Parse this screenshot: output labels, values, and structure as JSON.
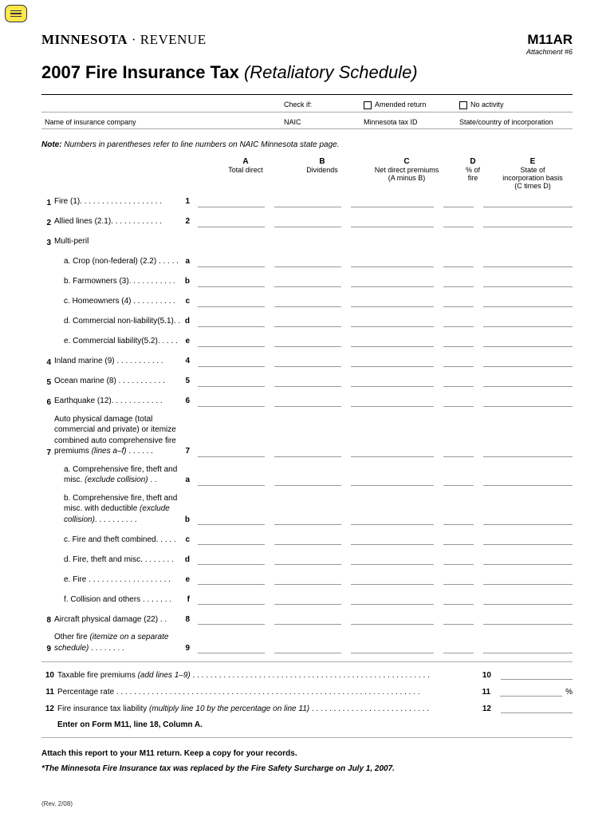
{
  "sticky_icon": "comment-icon",
  "logo_left": "MINNESOTA",
  "logo_sep": "·",
  "logo_right": "REVENUE",
  "form_code": "M11AR",
  "attachment": "Attachment #6",
  "title_main": "2007 Fire Insurance Tax",
  "title_sub": "(Retaliatory Schedule)",
  "hdr": {
    "check_if": "Check if:",
    "amended": "Amended return",
    "no_activity": "No activity",
    "company": "Name of insurance company",
    "naic": "NAIC",
    "mn_tax_id": "Minnesota tax ID",
    "state_inc": "State/country of incorporation"
  },
  "note_b": "Note:",
  "note_txt": " Numbers in parentheses refer to line numbers on NAIC Minnesota state page.",
  "cols": {
    "a": {
      "l": "A",
      "t": "Total direct"
    },
    "b": {
      "l": "B",
      "t": "Dividends"
    },
    "c": {
      "l": "C",
      "t": "Net direct premiums",
      "t2": "(A minus B)"
    },
    "d": {
      "l": "D",
      "t": "% of",
      "t2": "fire"
    },
    "e": {
      "l": "E",
      "t": "State of",
      "t2": "incorporation basis",
      "t3": "(C times D)"
    }
  },
  "lines": {
    "l1": "Fire (1). . . . . . . . . . . . . . . . . . .",
    "l2": "Allied lines (2.1). . . . . . . . . . . .",
    "l3": "Multi-peril",
    "l3a": "Crop (non-federal) (2.2) . . . . .",
    "l3b": "Farmowners (3). . . . . . . . . . .",
    "l3c": "Homeowners (4) . . . . . . . . . .",
    "l3d": "Commercial non-liability(5.1). .",
    "l3e": "Commercial liability(5.2). . . . .",
    "l4": "Inland marine (9) . . . . . . . . . . .",
    "l5": "Ocean marine (8) . . . . . . . . . . .",
    "l6": "Earthquake (12). . . . . . . . . . . .",
    "l7_1": "Auto physical damage (total commercial and private) or itemize combined auto comprehensive fire premiums ",
    "l7_2": "(lines a–f)",
    "l7_3": " . . . . . .",
    "l7a_1": "Comprehensive fire, theft and misc. ",
    "l7a_2": "(exclude collision)",
    "l7a_3": " . .",
    "l7b_1": "Comprehensive fire, theft and misc. with deductible ",
    "l7b_2": "(exclude collision)",
    "l7b_3": ". . . . . . . . . .",
    "l7c": "Fire and theft combined. . . . .",
    "l7d": "Fire, theft and misc.  . . . . . . .",
    "l7e": "Fire . . . . . . . . . . . . . . . . . . .",
    "l7f": "Collision and others  . . . . . . .",
    "l8": "Aircraft physical damage (22)  . .",
    "l9_1": "Other fire ",
    "l9_2": "(itemize on a separate schedule)",
    "l9_3": "  . . . . . . . .",
    "l10_1": "Taxable fire premiums ",
    "l10_2": "(add lines 1–9)",
    "l10_3": "  . . . . . . . . . . . . . . . . . . . . . . . . . . . . . . . . . . . . . . . . . . . . . . . . . . . . . .",
    "l11": "Percentage rate . . . . . . . . . . . . . . . . . . . . . . . . . . . . . . . . . . . . . . . . . . . . . . . . . . . . . . . . . . . . . . . . . . . . .",
    "l12_1": "Fire insurance tax liability ",
    "l12_2": "(multiply line 10 by the percentage on line 11)",
    "l12_3": "  . . . . . . . . . . . . . . . . . . . . . . . . . . .",
    "enter": "Enter on Form M11, line 18, Column A."
  },
  "ln": {
    "n1": "1",
    "n2": "2",
    "n3a": "a",
    "n3b": "b",
    "n3c": "c",
    "n3d": "d",
    "n3e": "e",
    "n4": "4",
    "n5": "5",
    "n6": "6",
    "n7": "7",
    "n7a": "a",
    "n7b": "b",
    "n7c": "c",
    "n7d": "d",
    "n7e": "e",
    "n7f": "f",
    "n8": "8",
    "n9": "9",
    "n10": "10",
    "n11": "11",
    "n12": "12"
  },
  "pct": "%",
  "attach_instr": "Attach this report to your M11 return. Keep a copy for your records.",
  "footnote": "*The Minnesota Fire Insurance tax was replaced by the Fire Safety Surcharge on July 1, 2007.",
  "rev": "(Rev. 2/08)"
}
